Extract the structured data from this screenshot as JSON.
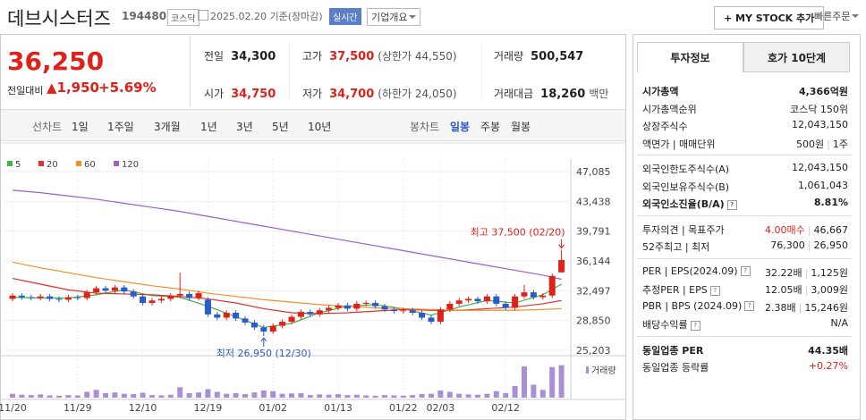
{
  "header": {
    "title": "데브시스터즈",
    "code": "194480",
    "market": "코스닥",
    "date_text": "2025.02.20 기준(장마감)",
    "realtime": "실시간",
    "company_button": "기업개요",
    "mystock_button": "+ MY STOCK 추가",
    "quick_order": "빠른주문"
  },
  "price": {
    "current": "36,250",
    "change_label": "전일대비",
    "change": "▲1,950",
    "change_pct": "+5.69%"
  },
  "summary": [
    [
      {
        "label": "전일",
        "value": "34,300"
      },
      {
        "label": "고가",
        "value": "37,500",
        "extra": "(상한가 44,550)"
      },
      {
        "label": "거래량",
        "value": "500,547"
      }
    ],
    [
      {
        "label": "시가",
        "value": "34,750"
      },
      {
        "label": "저가",
        "value": "34,700",
        "extra": "(하한가 24,050)"
      },
      {
        "label": "거래대금",
        "value": "18,260",
        "extra": "백만"
      }
    ]
  ],
  "period_tabs": {
    "line_label": "선차트",
    "line_items": [
      "1일",
      "1주일",
      "3개월",
      "1년",
      "3년",
      "5년",
      "10년"
    ],
    "candle_label": "봉차트",
    "candle_items": [
      "일봉",
      "주봉",
      "월봉"
    ],
    "active": "일봉"
  },
  "chart_data": {
    "type": "candlestick",
    "categories": [
      "11/20",
      null,
      null,
      null,
      null,
      null,
      null,
      "11/29",
      null,
      null,
      null,
      null,
      null,
      null,
      "12/10",
      null,
      null,
      null,
      null,
      null,
      null,
      "12/19",
      null,
      null,
      null,
      null,
      null,
      null,
      "01/02",
      null,
      null,
      null,
      null,
      null,
      null,
      "01/13",
      null,
      null,
      null,
      null,
      null,
      null,
      "01/22",
      null,
      null,
      null,
      "02/03",
      null,
      null,
      null,
      null,
      null,
      null,
      "02/12",
      null,
      null,
      null,
      null,
      null,
      null
    ],
    "open": [
      31500,
      31900,
      31700,
      31600,
      31800,
      31500,
      31400,
      31700,
      31600,
      32300,
      32800,
      32500,
      32900,
      32400,
      31800,
      31000,
      31300,
      31500,
      31900,
      32100,
      31600,
      31400,
      29600,
      29200,
      29800,
      29100,
      28600,
      28000,
      27500,
      28200,
      28700,
      29300,
      29900,
      29600,
      30100,
      30400,
      30700,
      30300,
      30900,
      31000,
      30600,
      30200,
      30000,
      30100,
      29800,
      29200,
      28700,
      30200,
      30900,
      31300,
      31500,
      31200,
      31800,
      30900,
      30400,
      31800,
      32300,
      31700,
      31900,
      34750
    ],
    "high": [
      32200,
      32200,
      32000,
      32100,
      32100,
      31800,
      32000,
      32000,
      32600,
      33100,
      33100,
      33200,
      33200,
      32700,
      32100,
      31600,
      31800,
      32200,
      34700,
      32400,
      32500,
      31700,
      29900,
      30100,
      30100,
      29400,
      28900,
      28300,
      28500,
      29000,
      29600,
      30200,
      30200,
      30400,
      30700,
      31000,
      31000,
      31200,
      31300,
      31300,
      30900,
      30500,
      30400,
      30400,
      30100,
      29500,
      30500,
      31200,
      31600,
      31800,
      31800,
      32100,
      32100,
      31200,
      32100,
      33200,
      32600,
      32200,
      34600,
      37500
    ],
    "low": [
      31200,
      31400,
      31300,
      31300,
      31200,
      31100,
      31100,
      31300,
      31300,
      32000,
      32200,
      32200,
      32100,
      31500,
      30700,
      30700,
      31000,
      31200,
      31600,
      31300,
      31300,
      29300,
      28900,
      28900,
      28800,
      28300,
      27700,
      26950,
      27200,
      27900,
      28400,
      29000,
      29300,
      29300,
      29800,
      30100,
      30000,
      30000,
      30600,
      30300,
      29900,
      29700,
      29700,
      29500,
      28900,
      28400,
      28400,
      29900,
      30600,
      31000,
      30900,
      30900,
      30600,
      30100,
      30100,
      31500,
      31400,
      31400,
      31600,
      34700
    ],
    "close": [
      31900,
      31700,
      31600,
      31800,
      31500,
      31400,
      31700,
      31600,
      32300,
      32800,
      32500,
      32900,
      32400,
      31800,
      31000,
      31300,
      31500,
      31900,
      32100,
      31600,
      32200,
      29600,
      29200,
      29800,
      29100,
      28600,
      28000,
      27500,
      28200,
      28700,
      29300,
      29900,
      29600,
      30100,
      30400,
      30700,
      30300,
      30900,
      31000,
      30600,
      30200,
      30000,
      30100,
      29800,
      29200,
      28700,
      30200,
      30900,
      31300,
      31500,
      31200,
      31800,
      30900,
      30400,
      31800,
      32300,
      31700,
      31900,
      34300,
      36250
    ],
    "volume": [
      60000,
      45000,
      40000,
      50000,
      35000,
      30000,
      40000,
      35000,
      90000,
      120000,
      70000,
      80000,
      60000,
      55000,
      75000,
      40000,
      35000,
      45000,
      160000,
      70000,
      80000,
      130000,
      90000,
      60000,
      70000,
      55000,
      80000,
      110000,
      100000,
      60000,
      65000,
      70000,
      40000,
      50000,
      45000,
      55000,
      40000,
      45000,
      35000,
      30000,
      40000,
      35000,
      30000,
      40000,
      55000,
      60000,
      110000,
      90000,
      60000,
      50000,
      45000,
      60000,
      100000,
      70000,
      180000,
      480000,
      200000,
      120000,
      470000,
      500547
    ],
    "volume_label": "거래량",
    "volume_ylim": [
      0,
      550000
    ],
    "up_color": "#e0201b",
    "down_color": "#2a5bc8",
    "volume_color": "#a98fd6",
    "ylim": [
      25203,
      47085
    ],
    "yticks": [
      {
        "value": 47085,
        "label": "47,085"
      },
      {
        "value": 43438,
        "label": "43,438"
      },
      {
        "value": 39791,
        "label": "39,791"
      },
      {
        "value": 36144,
        "label": "36,144"
      },
      {
        "value": 32497,
        "label": "32,497"
      },
      {
        "value": 28850,
        "label": "28,850"
      },
      {
        "value": 25203,
        "label": "25,203"
      }
    ],
    "grid": true,
    "series": [
      {
        "name": "5",
        "color": "#46b04a",
        "x": [
          0,
          3,
          6,
          9,
          12,
          15,
          18,
          21,
          24,
          27,
          30,
          33,
          36,
          39,
          42,
          45,
          48,
          51,
          54,
          57,
          59
        ],
        "values": [
          31700,
          31600,
          31600,
          32000,
          32600,
          31900,
          31700,
          30600,
          29300,
          28000,
          28500,
          29800,
          30600,
          30800,
          30300,
          29500,
          30500,
          31300,
          31000,
          32000,
          33300
        ]
      },
      {
        "name": "20",
        "color": "#e0312b",
        "x": [
          0,
          3,
          6,
          9,
          12,
          15,
          18,
          21,
          24,
          27,
          30,
          33,
          36,
          39,
          42,
          45,
          48,
          51,
          54,
          57,
          59
        ],
        "values": [
          34000,
          33300,
          32600,
          32200,
          32100,
          32000,
          31800,
          31500,
          31000,
          30300,
          29800,
          29700,
          29800,
          30000,
          30200,
          30100,
          30100,
          30300,
          30500,
          30900,
          31300
        ]
      },
      {
        "name": "60",
        "color": "#f0902a",
        "x": [
          0,
          3,
          6,
          9,
          12,
          15,
          18,
          21,
          24,
          27,
          30,
          33,
          36,
          39,
          42,
          45,
          48,
          51,
          54,
          57,
          59
        ],
        "values": [
          36000,
          35300,
          34700,
          34100,
          33600,
          33100,
          32700,
          32200,
          31800,
          31400,
          31100,
          30800,
          30600,
          30400,
          30300,
          30200,
          30100,
          30100,
          30100,
          30200,
          30300
        ]
      },
      {
        "name": "120",
        "color": "#9a5fc8",
        "x": [
          0,
          3,
          6,
          9,
          12,
          15,
          18,
          21,
          24,
          27,
          30,
          33,
          36,
          39,
          42,
          45,
          48,
          51,
          54,
          57,
          59
        ],
        "values": [
          44800,
          44500,
          44100,
          43700,
          43200,
          42700,
          42200,
          41600,
          41000,
          40400,
          39800,
          39200,
          38600,
          38000,
          37400,
          36800,
          36200,
          35600,
          35000,
          34400,
          33900
        ]
      }
    ],
    "annotations": {
      "high": {
        "text": "최고 37,500 (02/20)",
        "index": 59,
        "value": 37500
      },
      "low": {
        "text": "최저 26,950 (12/30)",
        "index": 27,
        "value": 26950
      }
    }
  },
  "info": {
    "tabs": [
      "투자정보",
      "호가 10단계"
    ],
    "active_tab": "투자정보",
    "groups": [
      [
        {
          "label": "시가총액",
          "values": [
            "4,366억원"
          ],
          "bold": true
        },
        {
          "label": "시가총액순위",
          "values": [
            "코스닥 150위"
          ]
        },
        {
          "label": "상장주식수",
          "values": [
            "12,043,150"
          ]
        },
        {
          "label": "액면가 | 매매단위",
          "values": [
            "500원",
            "1주"
          ]
        }
      ],
      [
        {
          "label": "외국인한도주식수(A)",
          "values": [
            "12,043,150"
          ]
        },
        {
          "label": "외국인보유주식수(B)",
          "values": [
            "1,061,043"
          ]
        },
        {
          "label": "외국인소진율(B/A)",
          "values": [
            "8.81%"
          ],
          "bold": true,
          "help": true
        }
      ],
      [
        {
          "label": "투자의견 | 목표주가",
          "values": [
            "4.00매수",
            "46,667"
          ],
          "color": "#e0201b"
        },
        {
          "label": "52주최고 | 최저",
          "values": [
            "76,300",
            "26,950"
          ]
        }
      ],
      [
        {
          "label": "PER | EPS(2024.09)",
          "values": [
            "32.22배",
            "1,125원"
          ],
          "help": true
        },
        {
          "label": "추정PER | EPS",
          "values": [
            "12.05배",
            "3,009원"
          ],
          "help": true
        },
        {
          "label": "PBR | BPS (2024.09)",
          "values": [
            "2.38배",
            "15,246원"
          ],
          "help": true
        },
        {
          "label": "배당수익률",
          "values": [
            "N/A"
          ],
          "help": true
        }
      ],
      [
        {
          "label": "동일업종 PER",
          "values": [
            "44.35배"
          ],
          "bold": true
        },
        {
          "label": "동일업종 등락률",
          "values": [
            "+0.27%"
          ],
          "color": "#e0201b"
        }
      ]
    ]
  }
}
